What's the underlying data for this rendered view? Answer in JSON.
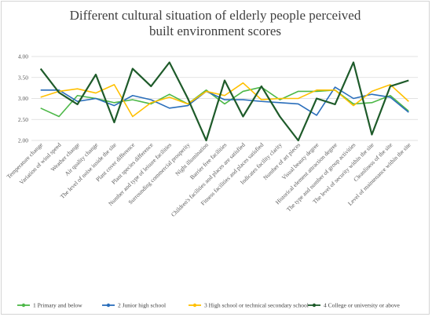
{
  "chart_data": {
    "type": "line",
    "title": "Different cultural situation of elderly people perceived\nbuilt environment scores",
    "xlabel": "",
    "ylabel": "",
    "ylim": [
      2.0,
      4.0
    ],
    "yticks": [
      "2.00",
      "2.50",
      "3.00",
      "3.50",
      "4.00"
    ],
    "grid": true,
    "legend_position": "bottom",
    "categories": [
      "Temperature change",
      "Variation of wind speed",
      "Weather change",
      "Air quality change",
      "The level of noise inside the site",
      "Plant cover difference",
      "Plant species difference",
      "Number and type of leisure facilities",
      "Surrounding commercial prosperity",
      "Night illumination",
      "Barrier free facilities",
      "Children's facilities and places are satisfied",
      "Fitness facilities and places satisfied",
      "Indicates facility clarity",
      "Number of art pieces",
      "Visual beauty degree",
      "Historical element attraction degree",
      "The type and number of group activities",
      "The level of security within the site",
      "Cleanliness of the site",
      "Level of maintenance within the site"
    ],
    "series": [
      {
        "name": "1 Primary and below",
        "color": "#4db848",
        "values": [
          2.77,
          2.57,
          3.07,
          3.0,
          2.9,
          2.97,
          2.87,
          3.1,
          2.87,
          3.2,
          2.87,
          3.17,
          3.27,
          2.97,
          3.17,
          3.17,
          3.2,
          2.87,
          2.9,
          3.07,
          2.7
        ]
      },
      {
        "name": "2 Junior high school",
        "color": "#2a6ebb",
        "values": [
          3.2,
          3.2,
          2.93,
          3.0,
          2.83,
          3.07,
          2.97,
          2.77,
          2.83,
          3.17,
          2.97,
          2.97,
          2.93,
          2.9,
          2.87,
          2.6,
          3.27,
          3.0,
          3.1,
          3.03,
          2.67
        ]
      },
      {
        "name": "3 High school or technical secondary school",
        "color": "#ffc000",
        "values": [
          3.03,
          3.17,
          3.23,
          3.13,
          3.33,
          2.57,
          2.9,
          3.03,
          2.87,
          3.17,
          3.07,
          3.37,
          2.97,
          3.0,
          3.0,
          3.2,
          3.2,
          2.83,
          3.17,
          3.33,
          2.93
        ]
      },
      {
        "name": "4 College or university or above",
        "color": "#1e5b2a",
        "values": [
          3.71,
          3.14,
          2.86,
          3.57,
          2.43,
          3.71,
          3.29,
          3.86,
          3.0,
          2.0,
          3.43,
          2.57,
          3.29,
          2.57,
          2.0,
          3.0,
          2.86,
          3.86,
          2.14,
          3.29,
          3.43
        ]
      }
    ]
  }
}
